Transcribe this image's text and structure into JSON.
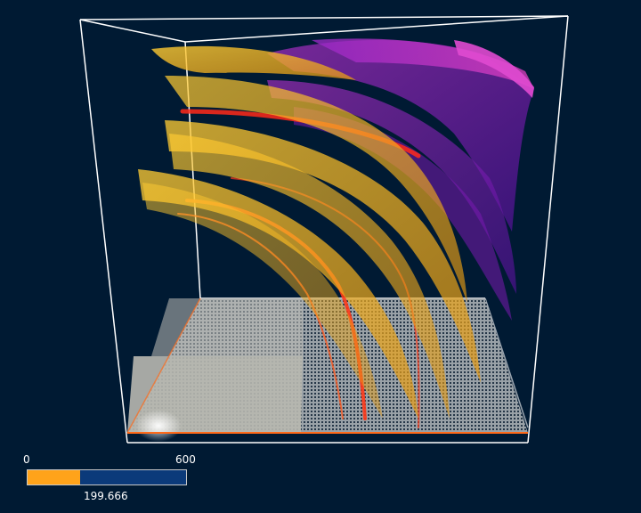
{
  "colors": {
    "background": "#001a33",
    "bounding_box": "#ffffff",
    "slider_fill": "#ffa31a",
    "slider_track": "#0b3a7a",
    "wave_orange": "#ffbb22",
    "wave_red": "#ff2a1a",
    "wave_purple": "#8a22c8",
    "wave_magenta": "#d033d0",
    "floor": "#c8c8c0"
  },
  "time_slider": {
    "min_label": "0",
    "max_label": "600",
    "min": 0,
    "max": 600,
    "value": 199.666,
    "value_label": "199.666"
  }
}
